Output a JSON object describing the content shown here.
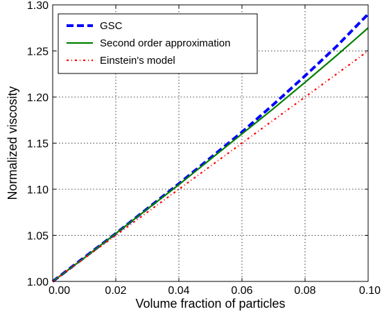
{
  "chart_data": {
    "type": "line",
    "title": "",
    "xlabel": "Volume fraction of particles",
    "ylabel": "Normalized viscosity",
    "xlim": [
      0.0,
      0.1
    ],
    "ylim": [
      1.0,
      1.3
    ],
    "x_ticks": [
      0.0,
      0.02,
      0.04,
      0.06,
      0.08,
      0.1
    ],
    "y_ticks": [
      1.0,
      1.05,
      1.1,
      1.15,
      1.2,
      1.25,
      1.3
    ],
    "x_tick_labels": [
      "0.00",
      "0.02",
      "0.04",
      "0.06",
      "0.08",
      "0.10"
    ],
    "y_tick_labels": [
      "1.00",
      "1.05",
      "1.10",
      "1.15",
      "1.20",
      "1.25",
      "1.30"
    ],
    "grid": true,
    "legend_position": "top-left",
    "x": [
      0.0,
      0.01,
      0.02,
      0.03,
      0.04,
      0.05,
      0.06,
      0.07,
      0.08,
      0.09,
      0.1
    ],
    "series": [
      {
        "name": "GSC",
        "color": "#0000ff",
        "style": "dashed",
        "values": [
          1.0,
          1.026,
          1.052,
          1.079,
          1.106,
          1.134,
          1.162,
          1.192,
          1.223,
          1.255,
          1.29
        ]
      },
      {
        "name": "Second order approximation",
        "color": "#007f00",
        "style": "solid",
        "values": [
          1.0,
          1.0255,
          1.052,
          1.0785,
          1.105,
          1.1325,
          1.16,
          1.1875,
          1.216,
          1.245,
          1.275
        ]
      },
      {
        "name": "Einstein's model",
        "color": "#ff0000",
        "style": "dashdot",
        "values": [
          1.0,
          1.025,
          1.05,
          1.075,
          1.1,
          1.125,
          1.15,
          1.175,
          1.2,
          1.225,
          1.25
        ]
      }
    ]
  }
}
